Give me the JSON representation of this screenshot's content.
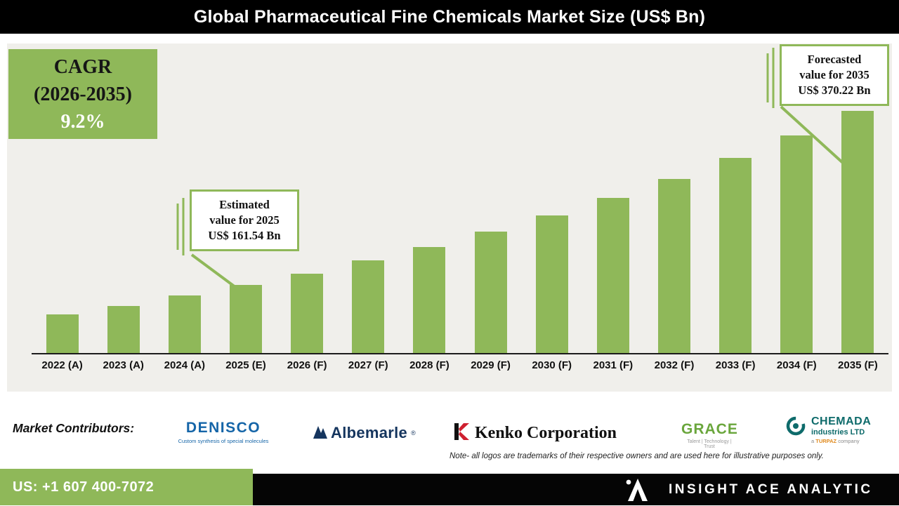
{
  "title": "Global Pharmaceutical Fine Chemicals Market Size (US$ Bn)",
  "cagr_box": {
    "line1": "CAGR",
    "line2": "(2026-2035)",
    "line3": "9.2%"
  },
  "annotations": {
    "estimated": {
      "lines": [
        "Estimated",
        "value for 2025",
        "US$ 161.54 Bn"
      ]
    },
    "forecasted": {
      "lines": [
        "Forecasted",
        "value for 2035",
        "US$ 370.22 Bn"
      ]
    }
  },
  "chart_data": {
    "type": "bar",
    "title": "Global Pharmaceutical Fine Chemicals Market Size (US$ Bn)",
    "categories": [
      "2022 (A)",
      "2023 (A)",
      "2024 (A)",
      "2025 (E)",
      "2026 (F)",
      "2027 (F)",
      "2028 (F)",
      "2029 (F)",
      "2030 (F)",
      "2031 (F)",
      "2032 (F)",
      "2033 (F)",
      "2034 (F)",
      "2035 (F)"
    ],
    "values": [
      125.9,
      136.8,
      148.7,
      161.54,
      175.5,
      190.7,
      207.2,
      225.2,
      244.7,
      265.8,
      288.8,
      313.8,
      340.9,
      370.22
    ],
    "unit": "US$ Bn",
    "labeled_points": {
      "2025 (E)": 161.54,
      "2035 (F)": 370.22
    },
    "cagr_2026_2035_pct": 9.2,
    "bar_color": "#8FB859",
    "baseline_value": 80,
    "grid": false,
    "legend": false
  },
  "contributors": {
    "label": "Market Contributors:",
    "logos": [
      {
        "name": "DENISCO",
        "tagline": "Custom synthesis of special molecules"
      },
      {
        "name": "Albemarle",
        "registered": "®"
      },
      {
        "name": "Kenko Corporation"
      },
      {
        "name": "GRACE",
        "tagline": "Talent | Technology | Trust"
      },
      {
        "name": "CHEMADA",
        "line2": "industries LTD",
        "tagline_prefix": "a ",
        "tagline_brand": "TURPAZ",
        "tagline_suffix": " company"
      }
    ],
    "note": "Note- all logos are trademarks of their respective owners and are used here for illustrative purposes only."
  },
  "footer": {
    "phone": "US: +1 607 400-7072",
    "brand": "INSIGHT ACE ANALYTIC"
  },
  "colors": {
    "accent_green": "#8FB859",
    "title_bar_bg": "#000000",
    "chart_bg": "#F0EFEB",
    "footer_bg": "#050505"
  }
}
